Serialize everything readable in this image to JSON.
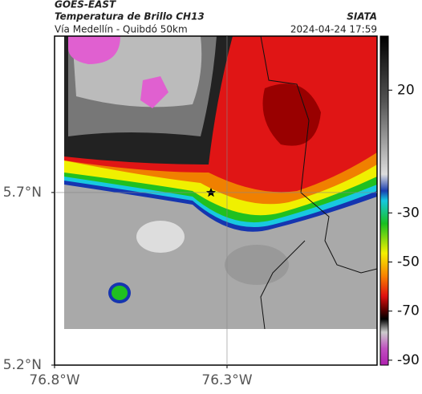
{
  "header": {
    "satellite": "GOES-EAST",
    "title": "Temperatura de Brillo CH13",
    "subtitle": "Vía Medellín - Quibdó 50km",
    "source": "SIATA",
    "datetime": "2024-04-24 17:59"
  },
  "map": {
    "xlim": [
      -76.8,
      -75.865
    ],
    "ylim": [
      5.2,
      6.153
    ],
    "xticks": [
      {
        "value": -76.8,
        "label": "76.8°W"
      },
      {
        "value": -76.3,
        "label": "76.3°W"
      }
    ],
    "yticks": [
      {
        "value": 5.2,
        "label": "5.2°N"
      },
      {
        "value": 5.7,
        "label": "5.7°N"
      }
    ],
    "grid": true
  },
  "colorbar": {
    "lim": [
      -92,
      42
    ],
    "ticks": [
      20,
      -30,
      -50,
      -70,
      -90
    ]
  }
}
